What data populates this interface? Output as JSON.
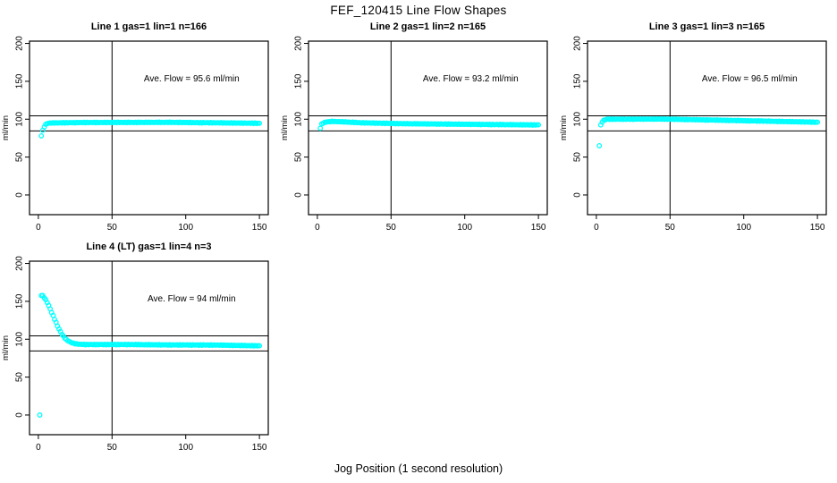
{
  "figure": {
    "background": "#FFFFFF",
    "foreground": "#000000"
  },
  "chart_data": {
    "type": "scatter",
    "title": "FEF_120415  Line Flow Shapes",
    "xlabel": "Jog Position (1 second resolution)",
    "ylabel": "ml/min",
    "point_color": "#00FFFF",
    "legend": "none",
    "axes": {
      "xlim": [
        -6,
        156
      ],
      "ylim": [
        -26,
        203
      ],
      "x_ticks": [
        0,
        50,
        100,
        150
      ],
      "y_ticks": [
        0,
        50,
        100,
        150,
        200
      ],
      "grid": false
    },
    "ref_lines": {
      "horizontal": [
        104.5,
        84.5
      ],
      "vertical": [
        50
      ]
    },
    "annotation_anchor": [
      104,
      150
    ],
    "panels": [
      {
        "title": "Line 1 gas=1 lin=1 n=166",
        "annotation": "Ave. Flow =  95.6  ml/min",
        "n": 166,
        "ave_flow_ml_min": 95.6,
        "outliers": [
          [
            2,
            78
          ]
        ],
        "profile": [
          [
            3,
            85
          ],
          [
            4,
            90
          ],
          [
            5,
            93
          ],
          [
            6,
            94.3
          ],
          [
            8,
            95
          ],
          [
            30,
            95.6
          ],
          [
            90,
            95.8
          ],
          [
            150,
            94.6
          ]
        ]
      },
      {
        "title": "Line 2 gas=1 lin=2 n=165",
        "annotation": "Ave. Flow =  93.2  ml/min",
        "n": 165,
        "ave_flow_ml_min": 93.2,
        "outliers": [
          [
            2,
            88
          ]
        ],
        "profile": [
          [
            3,
            93.5
          ],
          [
            4,
            95
          ],
          [
            6,
            96.3
          ],
          [
            10,
            97
          ],
          [
            16,
            96.6
          ],
          [
            30,
            95.2
          ],
          [
            60,
            94
          ],
          [
            100,
            93.3
          ],
          [
            150,
            92.4
          ]
        ]
      },
      {
        "title": "Line 3 gas=1 lin=3 n=165",
        "annotation": "Ave. Flow =  96.5  ml/min",
        "n": 165,
        "ave_flow_ml_min": 96.5,
        "outliers": [
          [
            2,
            65
          ]
        ],
        "profile": [
          [
            3,
            92
          ],
          [
            4,
            96.5
          ],
          [
            5,
            98.5
          ],
          [
            7,
            100
          ],
          [
            45,
            100.2
          ],
          [
            75,
            99
          ],
          [
            110,
            97.6
          ],
          [
            150,
            96
          ]
        ]
      },
      {
        "title": "Line 4 (LT) gas=1 lin=4 n=3",
        "annotation": "Ave. Flow =  94  ml/min",
        "n": 3,
        "ave_flow_ml_min": 94,
        "outliers": [
          [
            1,
            0
          ]
        ],
        "profile": [
          [
            2,
            158
          ],
          [
            3,
            157.5
          ],
          [
            4,
            155
          ],
          [
            5,
            152
          ],
          [
            6,
            148.5
          ],
          [
            7,
            144.5
          ],
          [
            8,
            140
          ],
          [
            9,
            135.5
          ],
          [
            10,
            131
          ],
          [
            11,
            126.5
          ],
          [
            12,
            122
          ],
          [
            13,
            117.5
          ],
          [
            14,
            113.5
          ],
          [
            15,
            110
          ],
          [
            16,
            106.5
          ],
          [
            17,
            104
          ],
          [
            18,
            101.5
          ],
          [
            19,
            99.5
          ],
          [
            20,
            98
          ],
          [
            22,
            95.8
          ],
          [
            24,
            94.5
          ],
          [
            27,
            93.5
          ],
          [
            32,
            93
          ],
          [
            60,
            93
          ],
          [
            90,
            92.5
          ],
          [
            120,
            92.3
          ],
          [
            150,
            91.3
          ]
        ]
      }
    ]
  }
}
